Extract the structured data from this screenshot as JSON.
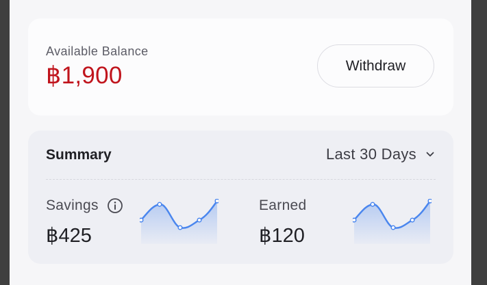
{
  "balance": {
    "label": "Available Balance",
    "amount": "฿1,900",
    "amount_color": "#c0141c"
  },
  "withdraw": {
    "label": "Withdraw"
  },
  "summary": {
    "title": "Summary",
    "range": {
      "selected": "Last 30 Days",
      "icon": "chevron-down-icon"
    },
    "stats": [
      {
        "label": "Savings",
        "value": "฿425",
        "info_icon": "info-icon"
      },
      {
        "label": "Earned",
        "value": "฿120"
      }
    ],
    "sparkline_color": "#4a86ee"
  }
}
